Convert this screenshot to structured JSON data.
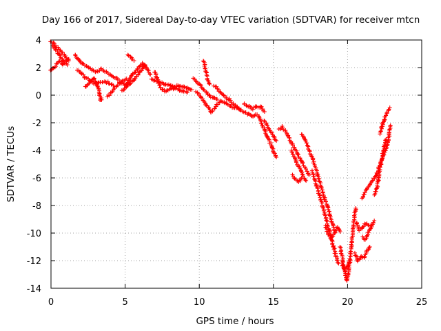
{
  "chart_data": {
    "type": "scatter",
    "title": "Day 166 of 2017, Sidereal Day-to-day VTEC variation (SDTVAR) for receiver mtcn",
    "xlabel": "GPS time / hours",
    "ylabel": "SDTVAR / TECUs",
    "xlim": [
      0,
      25
    ],
    "ylim": [
      -14,
      4
    ],
    "xticks": [
      "0",
      "5",
      "10",
      "15",
      "20",
      "25"
    ],
    "yticks": [
      "4",
      "2",
      "0",
      "-2",
      "-4",
      "-6",
      "-8",
      "-10",
      "-12",
      "-14"
    ],
    "grid": true,
    "marker": "+",
    "color": "#ff0000",
    "series": [
      {
        "name": "mtcn",
        "segments": [
          [
            [
              0.0,
              1.8
            ],
            [
              0.2,
              2.0
            ],
            [
              0.4,
              2.3
            ],
            [
              0.6,
              2.5
            ],
            [
              0.8,
              2.2
            ],
            [
              1.0,
              2.4
            ],
            [
              1.2,
              2.6
            ]
          ],
          [
            [
              0.0,
              3.9
            ],
            [
              0.2,
              3.7
            ],
            [
              0.4,
              3.5
            ],
            [
              0.6,
              3.2
            ],
            [
              0.8,
              3.0
            ],
            [
              1.0,
              2.8
            ],
            [
              1.2,
              2.5
            ]
          ],
          [
            [
              0.1,
              3.6
            ],
            [
              0.3,
              3.3
            ],
            [
              0.5,
              3.0
            ],
            [
              0.7,
              2.7
            ],
            [
              0.9,
              2.4
            ],
            [
              1.1,
              2.2
            ]
          ],
          [
            [
              1.6,
              2.9
            ],
            [
              1.9,
              2.5
            ],
            [
              2.2,
              2.2
            ],
            [
              2.5,
              2.0
            ],
            [
              2.8,
              1.8
            ],
            [
              3.1,
              1.7
            ],
            [
              3.4,
              1.9
            ],
            [
              3.7,
              1.7
            ],
            [
              4.0,
              1.5
            ],
            [
              4.3,
              1.3
            ],
            [
              4.6,
              1.1
            ]
          ],
          [
            [
              1.8,
              1.8
            ],
            [
              2.1,
              1.5
            ],
            [
              2.4,
              1.2
            ],
            [
              2.7,
              1.0
            ],
            [
              3.0,
              0.8
            ],
            [
              3.3,
              0.9
            ],
            [
              3.6,
              1.0
            ],
            [
              3.9,
              0.9
            ],
            [
              4.2,
              0.7
            ]
          ],
          [
            [
              2.3,
              0.6
            ],
            [
              2.6,
              0.9
            ],
            [
              2.9,
              1.2
            ],
            [
              3.2,
              0.5
            ],
            [
              3.3,
              -0.1
            ],
            [
              3.35,
              -0.4
            ],
            [
              3.4,
              -0.2
            ]
          ],
          [
            [
              3.8,
              -0.1
            ],
            [
              4.0,
              0.1
            ],
            [
              4.2,
              0.4
            ],
            [
              4.5,
              0.7
            ],
            [
              4.8,
              1.0
            ],
            [
              5.1,
              1.2
            ]
          ],
          [
            [
              5.2,
              2.9
            ],
            [
              5.4,
              2.7
            ],
            [
              5.6,
              2.5
            ]
          ],
          [
            [
              4.6,
              0.9
            ],
            [
              4.9,
              0.8
            ],
            [
              5.2,
              0.7
            ],
            [
              5.5,
              1.0
            ],
            [
              5.8,
              1.4
            ],
            [
              6.1,
              1.8
            ],
            [
              6.3,
              2.2
            ],
            [
              6.5,
              1.9
            ],
            [
              6.7,
              1.5
            ]
          ],
          [
            [
              4.8,
              0.3
            ],
            [
              5.0,
              0.5
            ],
            [
              5.3,
              1.2
            ],
            [
              5.6,
              1.6
            ],
            [
              5.9,
              2.0
            ],
            [
              6.2,
              2.3
            ],
            [
              6.4,
              2.0
            ]
          ],
          [
            [
              6.8,
              1.2
            ],
            [
              7.1,
              1.0
            ],
            [
              7.4,
              0.9
            ],
            [
              7.7,
              0.8
            ],
            [
              8.0,
              0.7
            ],
            [
              8.3,
              0.6
            ],
            [
              8.6,
              0.7
            ],
            [
              8.9,
              0.6
            ],
            [
              9.2,
              0.5
            ],
            [
              9.5,
              0.4
            ]
          ],
          [
            [
              7.0,
              1.7
            ],
            [
              7.1,
              1.4
            ],
            [
              7.4,
              0.5
            ],
            [
              7.7,
              0.3
            ],
            [
              8.0,
              0.4
            ],
            [
              8.3,
              0.5
            ],
            [
              8.6,
              0.4
            ],
            [
              8.9,
              0.3
            ],
            [
              9.2,
              0.2
            ]
          ],
          [
            [
              9.6,
              1.2
            ],
            [
              9.8,
              1.0
            ],
            [
              10.0,
              0.8
            ],
            [
              10.2,
              0.5
            ],
            [
              10.4,
              0.3
            ],
            [
              10.6,
              0.1
            ],
            [
              10.8,
              -0.1
            ],
            [
              11.0,
              -0.2
            ],
            [
              11.2,
              -0.3
            ]
          ],
          [
            [
              9.8,
              0.3
            ],
            [
              10.0,
              0.0
            ],
            [
              10.2,
              -0.3
            ],
            [
              10.4,
              -0.6
            ],
            [
              10.6,
              -0.9
            ],
            [
              10.8,
              -1.2
            ],
            [
              11.0,
              -1.0
            ],
            [
              11.2,
              -0.7
            ],
            [
              11.4,
              -0.4
            ]
          ],
          [
            [
              10.3,
              2.5
            ],
            [
              10.4,
              2.0
            ],
            [
              10.5,
              1.5
            ],
            [
              10.6,
              1.0
            ],
            [
              10.7,
              0.8
            ]
          ],
          [
            [
              11.0,
              0.7
            ],
            [
              11.2,
              0.5
            ],
            [
              11.4,
              0.2
            ],
            [
              11.6,
              0.0
            ],
            [
              11.8,
              -0.2
            ],
            [
              12.0,
              -0.3
            ],
            [
              12.2,
              -0.5
            ],
            [
              12.4,
              -0.7
            ],
            [
              12.6,
              -0.9
            ],
            [
              12.8,
              -1.1
            ]
          ],
          [
            [
              11.5,
              -0.4
            ],
            [
              11.8,
              -0.6
            ],
            [
              12.1,
              -0.8
            ],
            [
              12.4,
              -0.9
            ],
            [
              12.7,
              -1.0
            ],
            [
              13.0,
              -1.2
            ],
            [
              13.3,
              -1.4
            ],
            [
              13.6,
              -1.5
            ],
            [
              13.9,
              -1.4
            ]
          ],
          [
            [
              13.0,
              -0.6
            ],
            [
              13.3,
              -0.8
            ],
            [
              13.6,
              -1.0
            ],
            [
              13.9,
              -0.8
            ],
            [
              14.2,
              -0.9
            ],
            [
              14.4,
              -1.2
            ]
          ],
          [
            [
              14.0,
              -1.5
            ],
            [
              14.2,
              -2.0
            ],
            [
              14.4,
              -2.5
            ],
            [
              14.6,
              -3.0
            ],
            [
              14.8,
              -3.5
            ],
            [
              15.0,
              -4.0
            ],
            [
              15.2,
              -4.5
            ]
          ],
          [
            [
              14.4,
              -1.8
            ],
            [
              14.6,
              -2.3
            ],
            [
              14.8,
              -2.6
            ],
            [
              15.0,
              -3.0
            ],
            [
              15.2,
              -3.3
            ]
          ],
          [
            [
              15.4,
              -2.5
            ],
            [
              15.6,
              -2.3
            ],
            [
              15.8,
              -2.6
            ],
            [
              16.0,
              -3.0
            ],
            [
              16.2,
              -3.4
            ],
            [
              16.4,
              -3.8
            ],
            [
              16.6,
              -4.2
            ],
            [
              16.8,
              -4.6
            ],
            [
              17.0,
              -5.0
            ],
            [
              17.2,
              -5.4
            ],
            [
              17.4,
              -5.8
            ]
          ],
          [
            [
              16.2,
              -4.0
            ],
            [
              16.4,
              -4.5
            ],
            [
              16.6,
              -5.0
            ],
            [
              16.8,
              -5.4
            ],
            [
              17.0,
              -5.9
            ],
            [
              17.2,
              -6.2
            ]
          ],
          [
            [
              16.9,
              -2.8
            ],
            [
              17.1,
              -3.2
            ],
            [
              17.3,
              -3.7
            ],
            [
              17.5,
              -4.2
            ],
            [
              17.7,
              -4.8
            ],
            [
              17.9,
              -5.5
            ],
            [
              18.1,
              -6.2
            ],
            [
              18.3,
              -6.9
            ],
            [
              18.5,
              -7.6
            ],
            [
              18.7,
              -8.3
            ],
            [
              18.9,
              -9.0
            ],
            [
              19.1,
              -9.8
            ]
          ],
          [
            [
              17.6,
              -5.5
            ],
            [
              17.8,
              -6.2
            ],
            [
              18.0,
              -6.9
            ],
            [
              18.2,
              -7.6
            ],
            [
              18.4,
              -8.4
            ],
            [
              18.6,
              -9.2
            ],
            [
              18.8,
              -10.0
            ],
            [
              19.0,
              -10.8
            ],
            [
              19.2,
              -11.6
            ],
            [
              19.4,
              -12.2
            ]
          ],
          [
            [
              16.3,
              -5.8
            ],
            [
              16.5,
              -6.1
            ],
            [
              16.7,
              -6.3
            ],
            [
              16.9,
              -6.0
            ]
          ],
          [
            [
              18.5,
              -9.5
            ],
            [
              18.7,
              -10.1
            ],
            [
              18.9,
              -10.4
            ],
            [
              19.1,
              -10.0
            ],
            [
              19.3,
              -9.6
            ],
            [
              19.5,
              -9.9
            ]
          ],
          [
            [
              19.5,
              -11.0
            ],
            [
              19.7,
              -12.0
            ],
            [
              19.85,
              -13.0
            ],
            [
              19.95,
              -13.5
            ],
            [
              20.05,
              -13.0
            ],
            [
              20.15,
              -12.0
            ],
            [
              20.25,
              -11.0
            ],
            [
              20.35,
              -10.0
            ],
            [
              20.45,
              -9.0
            ],
            [
              20.55,
              -8.2
            ]
          ],
          [
            [
              19.6,
              -12.2
            ],
            [
              19.8,
              -12.6
            ],
            [
              20.0,
              -12.4
            ],
            [
              20.2,
              -12.0
            ]
          ],
          [
            [
              20.5,
              -11.5
            ],
            [
              20.7,
              -12.0
            ],
            [
              20.9,
              -11.7
            ],
            [
              21.1,
              -11.8
            ],
            [
              21.3,
              -11.3
            ],
            [
              21.5,
              -11.0
            ]
          ],
          [
            [
              20.6,
              -9.2
            ],
            [
              20.8,
              -9.8
            ],
            [
              21.0,
              -9.6
            ],
            [
              21.2,
              -9.3
            ],
            [
              21.4,
              -9.4
            ],
            [
              21.6,
              -9.5
            ],
            [
              21.8,
              -9.1
            ]
          ],
          [
            [
              21.0,
              -10.3
            ],
            [
              21.2,
              -10.5
            ],
            [
              21.4,
              -10.0
            ],
            [
              21.6,
              -9.6
            ]
          ],
          [
            [
              21.0,
              -7.5
            ],
            [
              21.2,
              -7.0
            ],
            [
              21.4,
              -6.6
            ],
            [
              21.6,
              -6.3
            ],
            [
              21.8,
              -6.0
            ],
            [
              22.0,
              -5.6
            ],
            [
              22.2,
              -5.0
            ],
            [
              22.4,
              -4.4
            ],
            [
              22.6,
              -3.8
            ],
            [
              22.8,
              -3.0
            ],
            [
              22.9,
              -2.2
            ]
          ],
          [
            [
              21.8,
              -7.2
            ],
            [
              22.0,
              -6.6
            ],
            [
              22.1,
              -6.0
            ],
            [
              22.2,
              -5.2
            ],
            [
              22.3,
              -4.6
            ],
            [
              22.4,
              -4.2
            ],
            [
              22.5,
              -3.6
            ],
            [
              22.6,
              -3.2
            ]
          ],
          [
            [
              22.2,
              -2.8
            ],
            [
              22.3,
              -2.4
            ],
            [
              22.4,
              -2.0
            ],
            [
              22.5,
              -1.7
            ],
            [
              22.6,
              -1.4
            ],
            [
              22.7,
              -1.2
            ],
            [
              22.8,
              -1.0
            ],
            [
              22.85,
              -0.9
            ]
          ]
        ]
      }
    ]
  }
}
